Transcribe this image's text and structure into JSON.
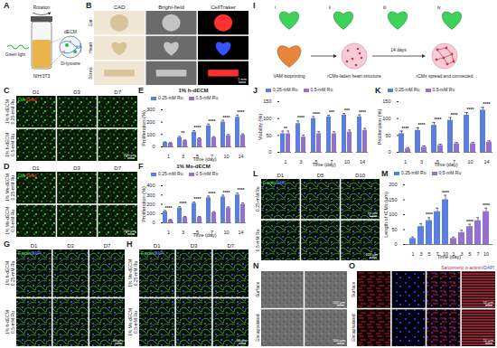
{
  "panels": {
    "A": {
      "letter": "A",
      "labels": {
        "rotation": "Rotation",
        "material": "dECM",
        "light": "Green light",
        "cells": "NIH/3T3",
        "crosslink": "Di-tyrosine"
      }
    },
    "B": {
      "letter": "B",
      "columns": [
        "CAD",
        "Bright-field",
        "CellTraker"
      ],
      "rows": [
        "Ear",
        "Heart",
        "Screw"
      ],
      "scale_bars": [
        "1 mm"
      ]
    },
    "C": {
      "letter": "C",
      "stain": [
        {
          "text": "Live",
          "color": "#3cff3c"
        },
        {
          "text": "/Dead",
          "color": "#ff4040"
        }
      ],
      "columns": [
        "D1",
        "D3",
        "D7"
      ],
      "rows": [
        "1% h-dECM 0.25-mM Ru",
        "1% h-dECM 0.5-mM Ru"
      ],
      "scale_bars": [
        "200 μm"
      ]
    },
    "D": {
      "letter": "D",
      "stain": [
        {
          "text": "Live",
          "color": "#3cff3c"
        },
        {
          "text": "/Dead",
          "color": "#ff4040"
        }
      ],
      "columns": [
        "D1",
        "D3",
        "D7"
      ],
      "rows": [
        "1% Ms-dECM 0.25-mM Ru",
        "1% Ms-dECM 0.5-mM Ru"
      ],
      "scale_bars": [
        "200 μm"
      ]
    },
    "G": {
      "letter": "G",
      "stain": [
        {
          "text": "F-actin",
          "color": "#5fe05f"
        },
        {
          "text": "/DAPI",
          "color": "#6f86ff"
        }
      ],
      "columns": [
        "D1",
        "D3",
        "D7"
      ],
      "rows": [
        "1% h-dECM 0.25-mM Ru",
        "1% h-dECM 0.5-mM Ru"
      ],
      "scale_bars": [
        "50 μm"
      ]
    },
    "H": {
      "letter": "H",
      "stain": [
        {
          "text": "F-actin",
          "color": "#5fe05f"
        },
        {
          "text": "/DAPI",
          "color": "#6f86ff"
        }
      ],
      "columns": [
        "D1",
        "D3",
        "D7"
      ],
      "rows": [
        "1% Ms-dECM 0.25-mM Ru",
        "1% Ms-dECM 0.5-mM Ru"
      ],
      "scale_bars": [
        "50 μm"
      ]
    },
    "I": {
      "letter": "I",
      "views": [
        "i",
        "ii",
        "iii",
        "iv"
      ],
      "labels": {
        "print": "VAM bioprinting",
        "construct": "rCMs-laden heart structure",
        "duration": "14 days",
        "result": "rCMs spread and connected"
      }
    },
    "L": {
      "letter": "L",
      "stain": [
        {
          "text": "F-actin",
          "color": "#5fe05f"
        },
        {
          "text": "/DAPI",
          "color": "#6f86ff"
        }
      ],
      "columns": [
        "D1",
        "D5",
        "D10"
      ],
      "rows": [
        "0.25-mM Ru",
        "0.5-mM Ru"
      ],
      "scale_bars": [
        "50 μm",
        "100 μm"
      ]
    },
    "N": {
      "letter": "N",
      "rows": [
        "Surface",
        "Encapsulated"
      ],
      "scale_bars": [
        "200 μm",
        "100 μm"
      ]
    },
    "O": {
      "letter": "O",
      "stain": [
        {
          "text": "Sarcomeric α-actinin",
          "color": "#e8324a"
        },
        {
          "text": "/DAPI",
          "color": "#4a5cff"
        }
      ],
      "rows": [
        "Surface",
        "Encapsulated"
      ],
      "scale_bars": [
        "50 μm",
        "10 μm"
      ]
    }
  },
  "chart_data": [
    {
      "panel": "E",
      "type": "bar",
      "title": "1% h-dECM",
      "categories": [
        "1",
        "3",
        "5",
        "7",
        "10",
        "14"
      ],
      "xlabel": "Time (day)",
      "ylabel": "Proliferation (%)",
      "ylim": [
        0,
        300
      ],
      "yticks": [
        0,
        100,
        200,
        300
      ],
      "legend": "top",
      "series": [
        {
          "name": "0.25-mM Ru",
          "color": "#5b7fe0",
          "values": [
            35,
            75,
            120,
            170,
            200,
            240
          ],
          "errors": [
            5,
            10,
            12,
            15,
            15,
            18
          ]
        },
        {
          "name": "0.5-mM Ru",
          "color": "#9470d0",
          "values": [
            30,
            50,
            65,
            75,
            90,
            95
          ],
          "errors": [
            5,
            6,
            8,
            8,
            10,
            10
          ]
        }
      ],
      "annotations": [
        null,
        "**",
        "****",
        "****",
        "****",
        "****"
      ]
    },
    {
      "panel": "F",
      "type": "bar",
      "title": "1% Ms-dECM",
      "categories": [
        "1",
        "3",
        "5",
        "7",
        "10",
        "14"
      ],
      "xlabel": "Time (day)",
      "ylabel": "Proliferation (%)",
      "ylim": [
        0,
        400
      ],
      "yticks": [
        0,
        100,
        200,
        300,
        400
      ],
      "legend": "top",
      "series": [
        {
          "name": "0.25-mM Ru",
          "color": "#5b7fe0",
          "values": [
            120,
            160,
            210,
            270,
            280,
            300
          ],
          "errors": [
            12,
            15,
            15,
            18,
            18,
            20
          ]
        },
        {
          "name": "0.5-mM Ru",
          "color": "#9470d0",
          "values": [
            30,
            60,
            60,
            110,
            160,
            200
          ],
          "errors": [
            5,
            8,
            8,
            10,
            12,
            15
          ]
        }
      ],
      "annotations": [
        "****",
        "****",
        "****",
        "****",
        "****",
        "****"
      ]
    },
    {
      "panel": "J",
      "type": "bar",
      "categories": [
        "1",
        "3",
        "5",
        "7",
        "10",
        "14"
      ],
      "xlabel": "Time (day)",
      "ylabel": "Viability (%)",
      "ylim": [
        0,
        150
      ],
      "yticks": [
        0,
        50,
        100,
        150
      ],
      "legend": "top",
      "series": [
        {
          "name": "0.25-mM Ru",
          "color": "#5b7fe0",
          "values": [
            55,
            85,
            100,
            105,
            110,
            105
          ],
          "errors": [
            8,
            8,
            6,
            5,
            5,
            6
          ]
        },
        {
          "name": "0.5-mM Ru",
          "color": "#9470d0",
          "values": [
            55,
            45,
            55,
            55,
            60,
            65
          ],
          "errors": [
            8,
            6,
            6,
            6,
            6,
            6
          ]
        }
      ],
      "annotations": [
        "**",
        "****",
        "****",
        "***",
        "***",
        "****"
      ]
    },
    {
      "panel": "K",
      "type": "bar",
      "categories": [
        "1",
        "3",
        "5",
        "7",
        "10",
        "14"
      ],
      "xlabel": "Time (day)",
      "ylabel": "Proliferation (%)",
      "ylim": [
        0,
        150
      ],
      "yticks": [
        0,
        50,
        100,
        150
      ],
      "legend": "top",
      "series": [
        {
          "name": "0.25-mM Ru",
          "color": "#5b7fe0",
          "values": [
            55,
            65,
            80,
            95,
            110,
            125
          ],
          "errors": [
            8,
            8,
            8,
            8,
            8,
            8
          ]
        },
        {
          "name": "0.5-mM Ru",
          "color": "#9470d0",
          "values": [
            10,
            15,
            20,
            25,
            25,
            30
          ],
          "errors": [
            4,
            4,
            4,
            4,
            4,
            4
          ]
        }
      ],
      "annotations": [
        "****",
        "****",
        "****",
        "****",
        "****",
        "****"
      ]
    },
    {
      "panel": "M",
      "type": "bar",
      "categories": [
        "1",
        "3",
        "5",
        "7",
        "10",
        "1",
        "3",
        "5",
        "7",
        "10"
      ],
      "xlabel": "Time (day)",
      "ylabel": "Length of rCMs (μm)",
      "ylim": [
        0,
        200
      ],
      "yticks": [
        0,
        50,
        100,
        150,
        200
      ],
      "legend": "top",
      "series": [
        {
          "name": "0.25-mM Ru",
          "color": "#5b7fe0",
          "values": [
            20,
            60,
            80,
            110,
            150,
            null,
            null,
            null,
            null,
            null
          ],
          "errors": [
            5,
            10,
            10,
            12,
            15,
            null,
            null,
            null,
            null,
            null
          ]
        },
        {
          "name": "0.5-mM Ru",
          "color": "#9470d0",
          "values": [
            null,
            null,
            null,
            null,
            null,
            20,
            40,
            60,
            80,
            110
          ],
          "errors": [
            null,
            null,
            null,
            null,
            null,
            5,
            8,
            8,
            10,
            12
          ]
        }
      ],
      "annotations": [
        null,
        null,
        "****",
        null,
        "****",
        null,
        null,
        "****",
        null,
        "****"
      ]
    }
  ]
}
